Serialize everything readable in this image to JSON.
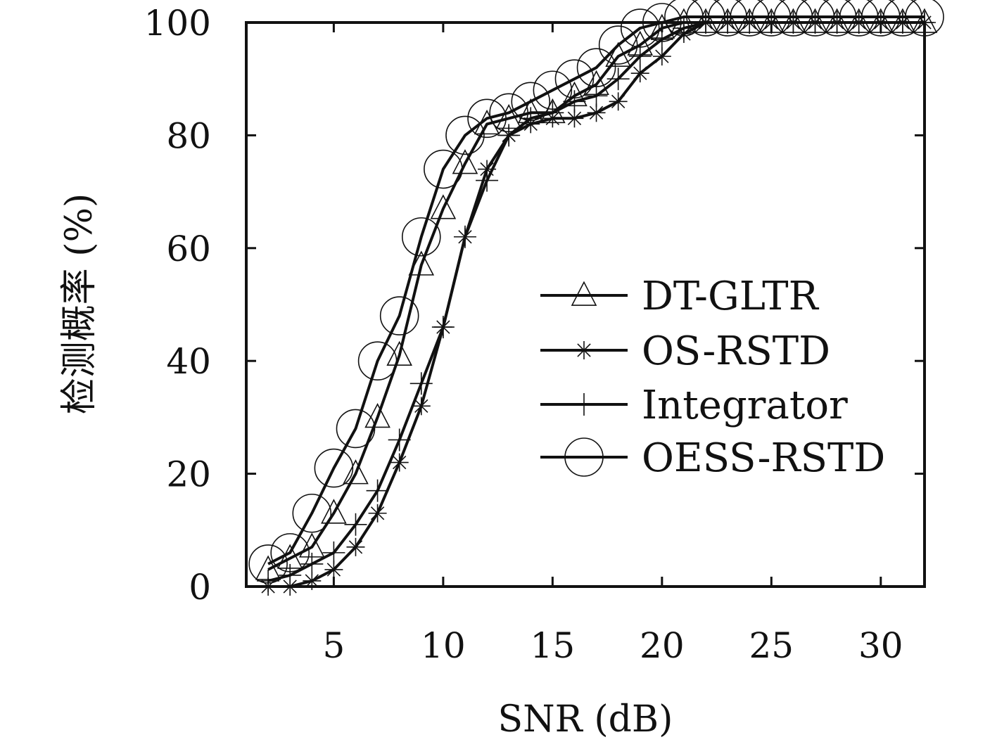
{
  "chart_data": {
    "type": "line",
    "xlabel": "SNR (dB)",
    "ylabel": "检测概率 (%)",
    "xlim": [
      1,
      32
    ],
    "ylim": [
      0,
      100
    ],
    "xticks": [
      5,
      10,
      15,
      20,
      25,
      30
    ],
    "yticks": [
      0,
      20,
      40,
      60,
      80,
      100
    ],
    "grid": false,
    "legend_position": "center-right",
    "x": [
      2,
      3,
      4,
      5,
      6,
      7,
      8,
      9,
      10,
      11,
      12,
      13,
      14,
      15,
      16,
      17,
      18,
      19,
      20,
      21,
      22,
      23,
      24,
      25,
      26,
      27,
      28,
      29,
      30,
      31,
      32
    ],
    "series": [
      {
        "name": "DT-GLTR",
        "marker": "triangle",
        "values": [
          3,
          5,
          7,
          13,
          20,
          30,
          41,
          57,
          67,
          75,
          82,
          83,
          84,
          84,
          87,
          89,
          94,
          96,
          99,
          100,
          100,
          100,
          100,
          100,
          100,
          100,
          100,
          100,
          100,
          100,
          100
        ]
      },
      {
        "name": "OS-RSTD",
        "marker": "asterisk",
        "values": [
          0,
          0,
          1,
          3,
          7,
          13,
          22,
          32,
          46,
          62,
          74,
          80,
          82,
          83,
          83,
          84,
          86,
          91,
          94,
          98,
          100,
          100,
          100,
          100,
          100,
          100,
          100,
          100,
          100,
          100,
          100
        ]
      },
      {
        "name": "Integrator",
        "marker": "plus",
        "values": [
          1,
          2,
          4,
          6,
          11,
          17,
          26,
          36,
          46,
          62,
          72,
          80,
          83,
          84,
          86,
          87,
          90,
          94,
          97,
          99,
          100,
          100,
          100,
          100,
          100,
          100,
          100,
          100,
          100,
          100,
          100
        ]
      },
      {
        "name": "OESS-RSTD",
        "marker": "circle",
        "values": [
          4,
          6,
          13,
          21,
          28,
          40,
          48,
          62,
          74,
          80,
          83,
          84,
          86,
          88,
          90,
          92,
          96,
          99,
          100,
          101,
          101,
          101,
          101,
          101,
          101,
          101,
          101,
          101,
          101,
          101,
          101
        ]
      }
    ]
  }
}
